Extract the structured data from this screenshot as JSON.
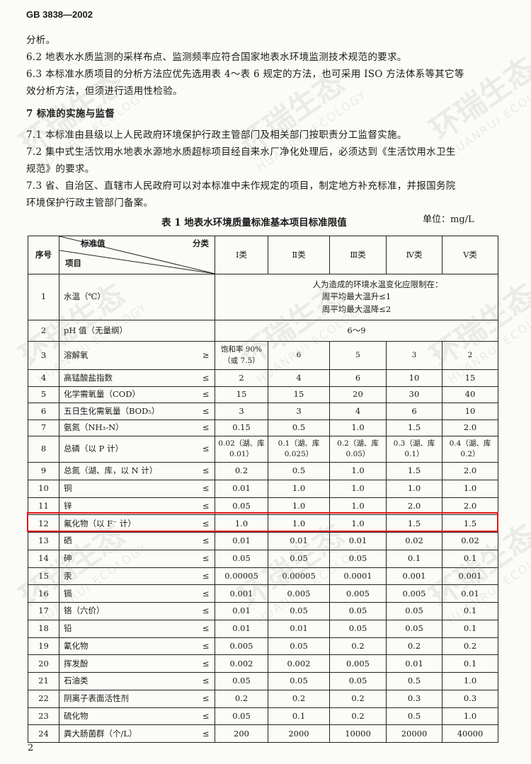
{
  "header": {
    "code": "GB 3838—2002"
  },
  "paragraphs": [
    "分析。",
    "6.2  地表水水质监测的采样布点、监测频率应符合国家地表水环境监测技术规范的要求。",
    "6.3  本标准水质项目的分析方法应优先选用表 4～表 6 规定的方法，也可采用 ISO 方法体系等其它等",
    "效分析方法，但须进行适用性检验。",
    "7  标准的实施与监督",
    "7.1  本标准由县级以上人民政府环境保护行政主管部门及相关部门按职责分工监督实施。",
    "7.2  集中式生活饮用水地表水源地水质超标项目经自来水厂净化处理后，必须达到《生活饮用水卫生",
    "规范》的要求。",
    "7.3  省、自治区、直辖市人民政府可以对本标准中未作规定的项目，制定地方补充标准，并报国务院",
    "环境保护行政主管部门备案。"
  ],
  "table": {
    "title": "表 1  地表水环境质量标准基本项目标准限值",
    "unit": "单位：mg/L",
    "header": {
      "seq": "序号",
      "standard": "标准值",
      "category": "分类",
      "item": "项目",
      "classes": [
        "Ⅰ类",
        "Ⅱ类",
        "Ⅲ类",
        "Ⅳ类",
        "Ⅴ类"
      ]
    },
    "rows": [
      {
        "seq": "1",
        "item": "水温（℃）",
        "sym": "",
        "merged": [
          "人为造成的环境水温变化应限制在：",
          "周平均最大温升≤1",
          "周平均最大温降≤2"
        ]
      },
      {
        "seq": "2",
        "item": "pH 值（无量纲）",
        "sym": "",
        "merged": [
          "6～9"
        ]
      },
      {
        "seq": "3",
        "item": "溶解氧",
        "sym": "≥",
        "values": [
          "饱和率 90%（或 7.5）",
          "6",
          "5",
          "3",
          "2"
        ]
      },
      {
        "seq": "4",
        "item": "高锰酸盐指数",
        "sym": "≤",
        "values": [
          "2",
          "4",
          "6",
          "10",
          "15"
        ]
      },
      {
        "seq": "5",
        "item": "化学需氧量（COD）",
        "sym": "≤",
        "values": [
          "15",
          "15",
          "20",
          "30",
          "40"
        ]
      },
      {
        "seq": "6",
        "item": "五日生化需氧量（BOD₅）",
        "sym": "≤",
        "values": [
          "3",
          "3",
          "4",
          "6",
          "10"
        ]
      },
      {
        "seq": "7",
        "item": "氨氮（NH₃-N）",
        "sym": "≤",
        "values": [
          "0.15",
          "0.5",
          "1.0",
          "1.5",
          "2.0"
        ]
      },
      {
        "seq": "8",
        "item": "总磷（以 P 计）",
        "sym": "≤",
        "values": [
          "0.02（湖、库 0.01）",
          "0.1（湖、库 0.025）",
          "0.2（湖、库 0.05）",
          "0.3（湖、库 0.1）",
          "0.4（湖、库 0.2）"
        ]
      },
      {
        "seq": "9",
        "item": "总氮（湖、库，以 N 计）",
        "sym": "≤",
        "values": [
          "0.2",
          "0.5",
          "1.0",
          "1.5",
          "2.0"
        ]
      },
      {
        "seq": "10",
        "item": "铜",
        "sym": "≤",
        "values": [
          "0.01",
          "1.0",
          "1.0",
          "1.0",
          "1.0"
        ]
      },
      {
        "seq": "11",
        "item": "锌",
        "sym": "≤",
        "values": [
          "0.05",
          "1.0",
          "1.0",
          "2.0",
          "2.0"
        ]
      },
      {
        "seq": "12",
        "item": "氟化物（以 F⁻ 计）",
        "sym": "≤",
        "values": [
          "1.0",
          "1.0",
          "1.0",
          "1.5",
          "1.5"
        ],
        "highlighted": true
      },
      {
        "seq": "13",
        "item": "硒",
        "sym": "≤",
        "values": [
          "0.01",
          "0.01",
          "0.01",
          "0.02",
          "0.02"
        ]
      },
      {
        "seq": "14",
        "item": "砷",
        "sym": "≤",
        "values": [
          "0.05",
          "0.05",
          "0.05",
          "0.1",
          "0.1"
        ]
      },
      {
        "seq": "15",
        "item": "汞",
        "sym": "≤",
        "values": [
          "0.00005",
          "0.00005",
          "0.0001",
          "0.001",
          "0.001"
        ]
      },
      {
        "seq": "16",
        "item": "镉",
        "sym": "≤",
        "values": [
          "0.001",
          "0.005",
          "0.005",
          "0.005",
          "0.01"
        ]
      },
      {
        "seq": "17",
        "item": "铬（六价）",
        "sym": "≤",
        "values": [
          "0.01",
          "0.05",
          "0.05",
          "0.05",
          "0.1"
        ]
      },
      {
        "seq": "18",
        "item": "铅",
        "sym": "≤",
        "values": [
          "0.01",
          "0.01",
          "0.05",
          "0.05",
          "0.1"
        ]
      },
      {
        "seq": "19",
        "item": "氰化物",
        "sym": "≤",
        "values": [
          "0.005",
          "0.05",
          "0.2",
          "0.2",
          "0.2"
        ]
      },
      {
        "seq": "20",
        "item": "挥发酚",
        "sym": "≤",
        "values": [
          "0.002",
          "0.002",
          "0.005",
          "0.01",
          "0.1"
        ]
      },
      {
        "seq": "21",
        "item": "石油类",
        "sym": "≤",
        "values": [
          "0.05",
          "0.05",
          "0.05",
          "0.5",
          "1.0"
        ]
      },
      {
        "seq": "22",
        "item": "阴离子表面活性剂",
        "sym": "≤",
        "values": [
          "0.2",
          "0.2",
          "0.2",
          "0.3",
          "0.3"
        ]
      },
      {
        "seq": "23",
        "item": "硫化物",
        "sym": "≤",
        "values": [
          "0.05",
          "0.1",
          "0.2",
          "0.5",
          "1.0"
        ]
      },
      {
        "seq": "24",
        "item": "粪大肠菌群（个/L）",
        "sym": "≤",
        "values": [
          "200",
          "2000",
          "10000",
          "20000",
          "40000"
        ]
      }
    ]
  },
  "highlight_color": "#e01818",
  "page_number": "2",
  "watermark": {
    "cn": "环瑞生态",
    "en": "HUANRUI ECOLOGY"
  }
}
